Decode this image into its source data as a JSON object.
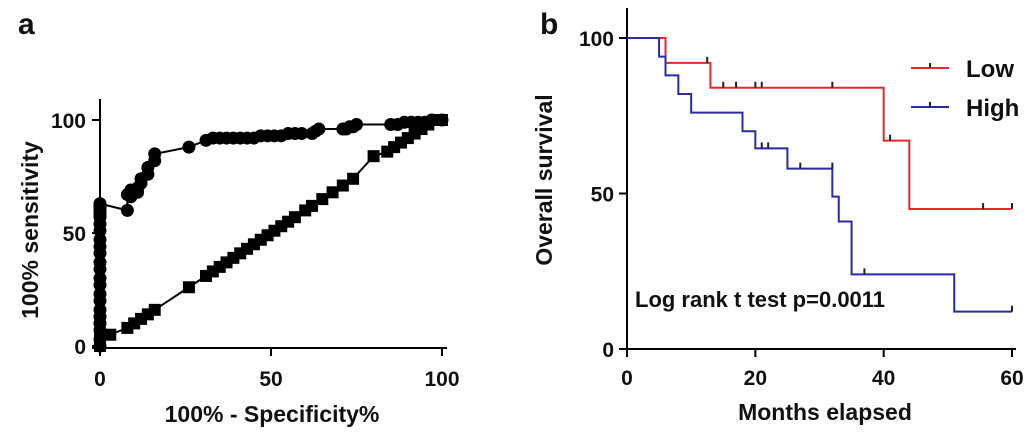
{
  "panels": {
    "a": {
      "letter": "a",
      "xlabel": "100% - Specificity%",
      "ylabel": "100% sensitivity",
      "xticks": [
        "0",
        "50",
        "100"
      ],
      "yticks": [
        "0",
        "50",
        "100"
      ]
    },
    "b": {
      "letter": "b",
      "xlabel": "Months elapsed",
      "ylabel": "Overall survival",
      "xticks": [
        "0",
        "20",
        "40",
        "60"
      ],
      "yticks": [
        "0",
        "50",
        "100"
      ],
      "annotation": "Log rank t test p=0.0011",
      "legend": [
        {
          "label": "Low",
          "color": "#e8262b"
        },
        {
          "label": "High",
          "color": "#2a2aa8"
        }
      ]
    }
  },
  "chart_data": [
    {
      "type": "line",
      "title": "",
      "xlabel": "100% - Specificity%",
      "ylabel": "100% sensitivity",
      "xlim": [
        0,
        100
      ],
      "ylim": [
        0,
        100
      ],
      "grid": false,
      "series": [
        {
          "marker": "circle",
          "color": "#000000",
          "x": [
            0,
            0,
            0,
            0,
            0,
            0,
            0,
            0,
            0,
            0,
            0,
            0,
            0,
            0,
            0,
            0,
            0,
            0,
            0,
            0,
            0,
            0,
            0,
            0,
            8,
            8,
            9,
            9,
            11,
            11,
            12,
            12,
            14,
            14,
            16,
            16,
            26,
            31,
            33,
            35,
            37,
            39,
            41,
            43,
            45,
            47,
            49,
            51,
            53,
            55,
            57,
            59,
            62,
            63,
            64,
            71,
            72,
            73,
            74,
            75,
            85,
            87,
            89,
            91,
            93,
            95,
            97,
            100
          ],
          "y": [
            0,
            3,
            7,
            10,
            13,
            16,
            20,
            23,
            27,
            30,
            34,
            37,
            41,
            44,
            47,
            51,
            54,
            57,
            58,
            59,
            60,
            61,
            62,
            63,
            60,
            67,
            66,
            69,
            68,
            70,
            72,
            74,
            76,
            79,
            82,
            85,
            88,
            91,
            92,
            92,
            92,
            92,
            92,
            92,
            92,
            93,
            93,
            93,
            93,
            94,
            94,
            94,
            94,
            95,
            96,
            96,
            96,
            97,
            97,
            98,
            98,
            98,
            99,
            99,
            99,
            99,
            100,
            100
          ]
        },
        {
          "marker": "square",
          "color": "#000000",
          "x": [
            0,
            0,
            0,
            3,
            8,
            10,
            12,
            14,
            16,
            26,
            31,
            33,
            35,
            37,
            39,
            41,
            43,
            45,
            47,
            49,
            51,
            53,
            55,
            57,
            60,
            62,
            65,
            68,
            71,
            74,
            80,
            84,
            86,
            88,
            90,
            92,
            94,
            96,
            98,
            100
          ],
          "y": [
            0,
            2,
            3,
            5,
            8,
            10,
            12,
            14,
            16,
            26,
            31,
            33,
            35,
            37,
            39,
            41,
            43,
            45,
            47,
            49,
            51,
            53,
            55,
            57,
            60,
            62,
            65,
            68,
            71,
            74,
            84,
            86,
            88,
            90,
            92,
            94,
            96,
            98,
            100,
            100
          ]
        }
      ]
    },
    {
      "type": "line",
      "title": "",
      "xlabel": "Months elapsed",
      "ylabel": "Overall survival",
      "xlim": [
        0,
        60
      ],
      "ylim": [
        0,
        100
      ],
      "grid": false,
      "legend_position": "top-right",
      "series": [
        {
          "name": "Low",
          "color": "#e8262b",
          "step": true,
          "x": [
            0,
            6,
            13,
            40,
            44,
            60
          ],
          "y": [
            100,
            92,
            84,
            67,
            45,
            45
          ],
          "censored_x": [
            12.5,
            15,
            17,
            20,
            21,
            32,
            41,
            55.5,
            60
          ],
          "censored_y": [
            92,
            84,
            84,
            84,
            84,
            84,
            67,
            45,
            45
          ]
        },
        {
          "name": "High",
          "color": "#2a2aa8",
          "step": true,
          "x": [
            0,
            5,
            6,
            8,
            10,
            18,
            20,
            25,
            32,
            33,
            35,
            51,
            60
          ],
          "y": [
            100,
            94,
            88,
            82,
            76,
            70,
            64.5,
            58,
            49,
            41,
            24,
            12,
            12
          ],
          "censored_x": [
            21,
            22,
            27,
            32,
            37,
            60
          ],
          "censored_y": [
            64.5,
            64.5,
            58,
            58,
            24,
            12
          ]
        }
      ]
    }
  ]
}
